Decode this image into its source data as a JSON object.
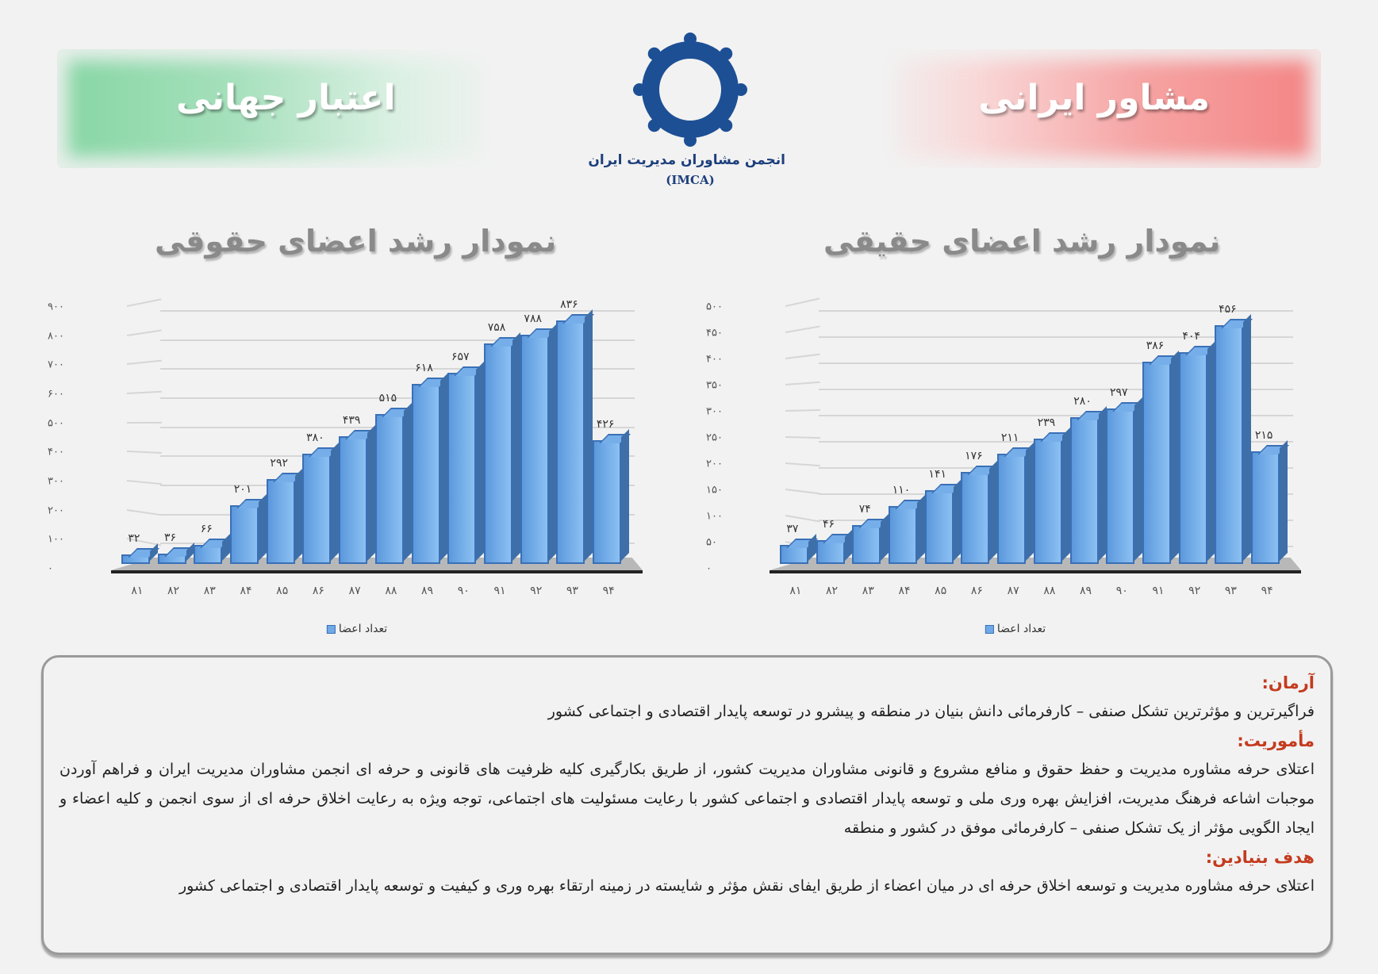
{
  "header": {
    "left_banner": "اعتبار جهانی",
    "right_banner": "مشاور ایرانی",
    "logo_name": "انجمن مشاوران مدیریت ایران",
    "logo_abbr": "(IMCA)",
    "colors": {
      "green_banner": "#86d6a4",
      "red_banner": "#f48484",
      "logo_blue": "#1d3f7c"
    }
  },
  "chart_titles": {
    "left": "نمودار رشد اعضای حقوقی",
    "right": "نمودار رشد اعضای حقیقی"
  },
  "chart_data": [
    {
      "type": "bar",
      "title": "نمودار رشد اعضای حقوقی",
      "xlabel": "",
      "ylabel": "",
      "categories": [
        "۸۱",
        "۸۲",
        "۸۳",
        "۸۴",
        "۸۵",
        "۸۶",
        "۸۷",
        "۸۸",
        "۸۹",
        "۹۰",
        "۹۱",
        "۹۲",
        "۹۳",
        "۹۴"
      ],
      "values": [
        32,
        36,
        66,
        201,
        292,
        380,
        439,
        515,
        618,
        657,
        758,
        788,
        836,
        426
      ],
      "value_labels": [
        "۳۲",
        "۳۶",
        "۶۶",
        "۲۰۱",
        "۲۹۲",
        "۳۸۰",
        "۴۳۹",
        "۵۱۵",
        "۶۱۸",
        "۶۵۷",
        "۷۵۸",
        "۷۸۸",
        "۸۳۶",
        "۴۲۶"
      ],
      "yticks": [
        "۰",
        "۱۰۰",
        "۲۰۰",
        "۳۰۰",
        "۴۰۰",
        "۵۰۰",
        "۶۰۰",
        "۷۰۰",
        "۸۰۰",
        "۹۰۰"
      ],
      "ylim": [
        0,
        900
      ],
      "grid": true,
      "legend": {
        "label": "تعداد اعضا",
        "position": "bottom"
      },
      "series_color": "#6fa9e6"
    },
    {
      "type": "bar",
      "title": "نمودار رشد اعضای حقیقی",
      "xlabel": "",
      "ylabel": "",
      "categories": [
        "۸۱",
        "۸۲",
        "۸۳",
        "۸۴",
        "۸۵",
        "۸۶",
        "۸۷",
        "۸۸",
        "۸۹",
        "۹۰",
        "۹۱",
        "۹۲",
        "۹۳",
        "۹۴"
      ],
      "values": [
        37,
        46,
        74,
        110,
        141,
        176,
        211,
        239,
        280,
        297,
        386,
        404,
        456,
        215
      ],
      "value_labels": [
        "۳۷",
        "۴۶",
        "۷۴",
        "۱۱۰",
        "۱۴۱",
        "۱۷۶",
        "۲۱۱",
        "۲۳۹",
        "۲۸۰",
        "۲۹۷",
        "۳۸۶",
        "۴۰۴",
        "۴۵۶",
        "۲۱۵"
      ],
      "yticks": [
        "۰",
        "۵۰",
        "۱۰۰",
        "۱۵۰",
        "۲۰۰",
        "۲۵۰",
        "۳۰۰",
        "۳۵۰",
        "۴۰۰",
        "۴۵۰",
        "۵۰۰"
      ],
      "ylim": [
        0,
        500
      ],
      "grid": true,
      "legend": {
        "label": "تعداد اعضا",
        "position": "bottom"
      },
      "series_color": "#6fa9e6"
    }
  ],
  "info": {
    "vision_heading": "آرمان:",
    "vision_text": "فراگیرترین و مؤثرترین تشکل صنفی – کارفرمائی دانش بنیان در منطقه و پیشرو در توسعه پایدار اقتصادی و اجتماعی کشور",
    "mission_heading": "مأموریت:",
    "mission_text": "اعتلای حرفه مشاوره مدیریت و حفظ حقوق و منافع مشروع و قانونی مشاوران مدیریت کشور، از طریق بکارگیری کلیه ظرفیت های قانونی و حرفه ای انجمن مشاوران مدیریت ایران و فراهم آوردن موجبات اشاعه فرهنگ مدیریت، افزایش بهره وری ملی و توسعه پایدار اقتصادی و اجتماعی کشور با رعایت مسئولیت های اجتماعی، توجه ویژه به رعایت اخلاق حرفه ای از سوی انجمن و کلیه اعضاء و ایجاد الگویی مؤثر از یک تشکل صنفی – کارفرمائی موفق در کشور و منطقه",
    "goal_heading": "هدف بنیادین:",
    "goal_text": "اعتلای حرفه مشاوره مدیریت و توسعه اخلاق حرفه ای در میان اعضاء از طریق ایفای نقش مؤثر و شایسته در زمینه ارتقاء بهره وری و کیفیت و توسعه پایدار اقتصادی و اجتماعی کشور",
    "heading_color": "#c43b1e"
  }
}
